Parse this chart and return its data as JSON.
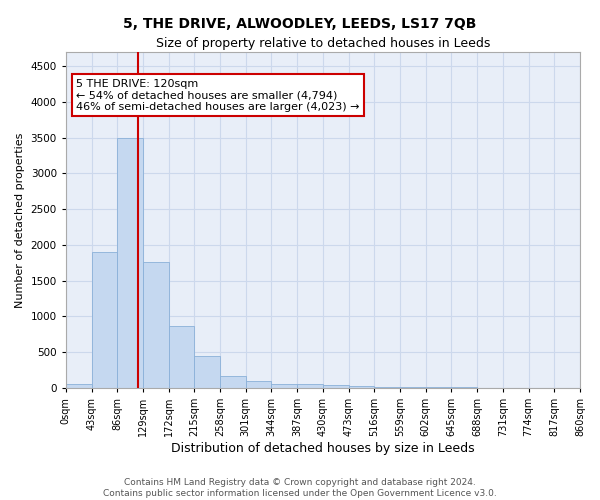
{
  "title": "5, THE DRIVE, ALWOODLEY, LEEDS, LS17 7QB",
  "subtitle": "Size of property relative to detached houses in Leeds",
  "xlabel": "Distribution of detached houses by size in Leeds",
  "ylabel": "Number of detached properties",
  "bar_color": "#c5d8f0",
  "bar_edge_color": "#8ab0d8",
  "grid_color": "#ccd8ec",
  "background_color": "#e8eef8",
  "bins": [
    0,
    43,
    86,
    129,
    172,
    215,
    258,
    301,
    344,
    387,
    430,
    473,
    516,
    559,
    602,
    645,
    688,
    731,
    774,
    817,
    860
  ],
  "bin_labels": [
    "0sqm",
    "43sqm",
    "86sqm",
    "129sqm",
    "172sqm",
    "215sqm",
    "258sqm",
    "301sqm",
    "344sqm",
    "387sqm",
    "430sqm",
    "473sqm",
    "516sqm",
    "559sqm",
    "602sqm",
    "645sqm",
    "688sqm",
    "731sqm",
    "774sqm",
    "817sqm",
    "860sqm"
  ],
  "values": [
    60,
    1900,
    3500,
    1760,
    860,
    450,
    170,
    100,
    60,
    50,
    45,
    30,
    20,
    15,
    10,
    8,
    6,
    4,
    3,
    2
  ],
  "ylim": [
    0,
    4700
  ],
  "yticks": [
    0,
    500,
    1000,
    1500,
    2000,
    2500,
    3000,
    3500,
    4000,
    4500
  ],
  "property_line_x": 120,
  "annotation_line1": "5 THE DRIVE: 120sqm",
  "annotation_line2": "← 54% of detached houses are smaller (4,794)",
  "annotation_line3": "46% of semi-detached houses are larger (4,023) →",
  "annotation_box_color": "#ffffff",
  "annotation_border_color": "#cc0000",
  "vline_color": "#cc0000",
  "footer_text": "Contains HM Land Registry data © Crown copyright and database right 2024.\nContains public sector information licensed under the Open Government Licence v3.0.",
  "title_fontsize": 10,
  "subtitle_fontsize": 9,
  "xlabel_fontsize": 9,
  "ylabel_fontsize": 8,
  "tick_fontsize": 7,
  "annotation_fontsize": 8,
  "footer_fontsize": 6.5
}
